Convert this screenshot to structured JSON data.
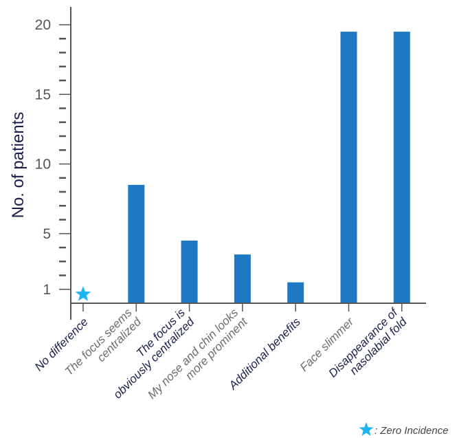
{
  "chart_data": {
    "type": "bar",
    "categories": [
      [
        "No difference"
      ],
      [
        "The focus seems",
        "centralized"
      ],
      [
        "The focus is",
        "obviously centralized"
      ],
      [
        "My nose and chin looks",
        "more prominent"
      ],
      [
        "Additional benefits"
      ],
      [
        "Face slimmer"
      ],
      [
        "Disappearance of",
        "nasolabial fold"
      ]
    ],
    "category_colors": [
      "#1b1f4a",
      "#6b6b6b",
      "#1b1f4a",
      "#6b6b6b",
      "#1b1f4a",
      "#6b6b6b",
      "#1b1f4a"
    ],
    "values": [
      0,
      8.5,
      4.5,
      3.5,
      1.5,
      19.5,
      19.5
    ],
    "zero_marker": "star-icon",
    "ylabel": "No. of patients",
    "yticks": [
      1,
      5,
      10,
      15,
      20
    ],
    "ylim": [
      0,
      20
    ],
    "minor_ticks": true,
    "grid": false,
    "bar_color": "#1f78c4",
    "star_color": "#1fb3f0",
    "legend": {
      "symbol": "star-icon",
      "text": ": Zero Incidence",
      "placement": "bottom-right"
    }
  }
}
